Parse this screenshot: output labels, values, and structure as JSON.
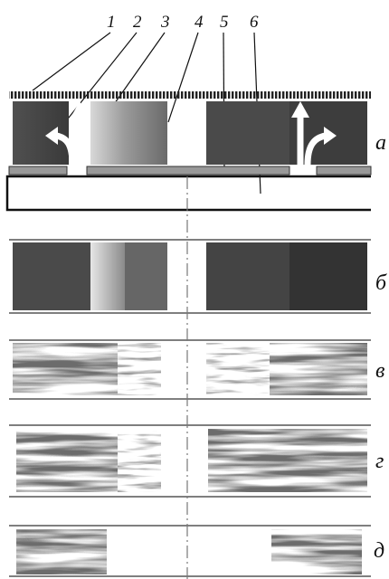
{
  "callouts": [
    "1",
    "2",
    "3",
    "4",
    "5",
    "6"
  ],
  "panels": [
    "а",
    "б",
    "в",
    "г",
    "д"
  ]
}
